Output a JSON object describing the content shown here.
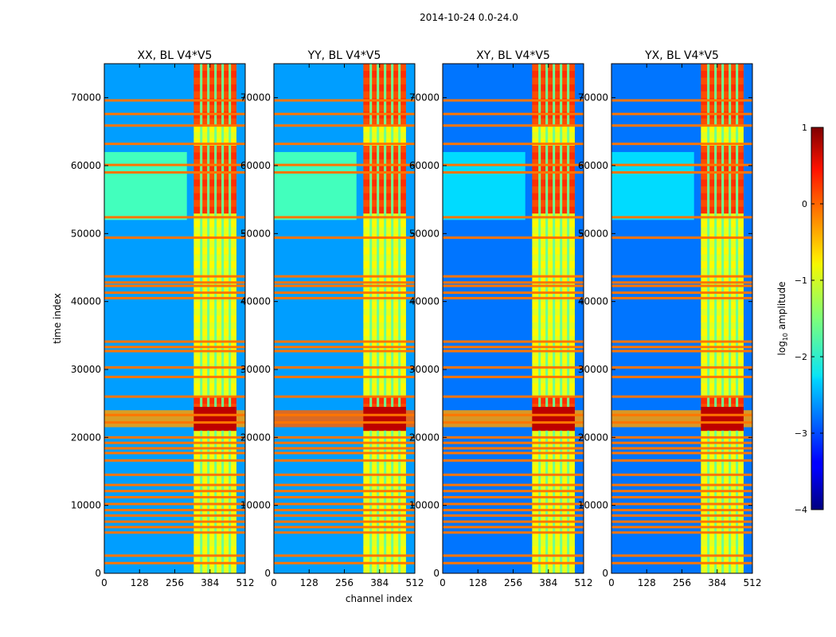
{
  "figure_title": "2014-10-24 0.0-24.0",
  "chart_data": {
    "type": "heatmap",
    "xlabel": "channel index",
    "ylabel": "time index",
    "xlim": [
      0,
      512
    ],
    "ylim": [
      0,
      75000
    ],
    "x_ticks": [
      0,
      128,
      256,
      384,
      512
    ],
    "y_ticks": [
      0,
      10000,
      20000,
      30000,
      40000,
      50000,
      60000,
      70000
    ],
    "panels": [
      {
        "title": "XX, BL V4*V5",
        "polarization": "XX",
        "background_level": -2.6,
        "quiet_region_level": -1.8
      },
      {
        "title": "YY, BL V4*V5",
        "polarization": "YY",
        "background_level": -2.6,
        "quiet_region_level": -1.8
      },
      {
        "title": "XY, BL V4*V5",
        "polarization": "XY",
        "background_level": -2.8,
        "quiet_region_level": -2.3
      },
      {
        "title": "YX, BL V4*V5",
        "polarization": "YX",
        "background_level": -2.8,
        "quiet_region_level": -2.3
      }
    ],
    "signal_channel_range": [
      325,
      480
    ],
    "bright_time_ranges": [
      [
        21000,
        25000
      ],
      [
        53000,
        62000
      ],
      [
        66000,
        75000
      ]
    ],
    "rfi_time_rows": [
      1500,
      2600,
      6000,
      6800,
      7600,
      8500,
      9300,
      10200,
      11200,
      12100,
      13000,
      14500,
      16600,
      17700,
      18400,
      19200,
      20000,
      22200,
      23300,
      26000,
      28900,
      30300,
      32700,
      33300,
      34100,
      40500,
      41300,
      42300,
      42800,
      43700,
      49400,
      52400,
      59000,
      60100,
      63200,
      65900,
      67600,
      69600
    ],
    "colorbar": {
      "label": "log",
      "label_subscript": "10",
      "label_suffix": " amplitude",
      "min": -4,
      "max": 1,
      "ticks": [
        -4,
        -3,
        -2,
        -1,
        0,
        1
      ],
      "tick_labels": [
        "−4",
        "−3",
        "−2",
        "−1",
        "0",
        "1"
      ],
      "colormap": "jet"
    }
  }
}
